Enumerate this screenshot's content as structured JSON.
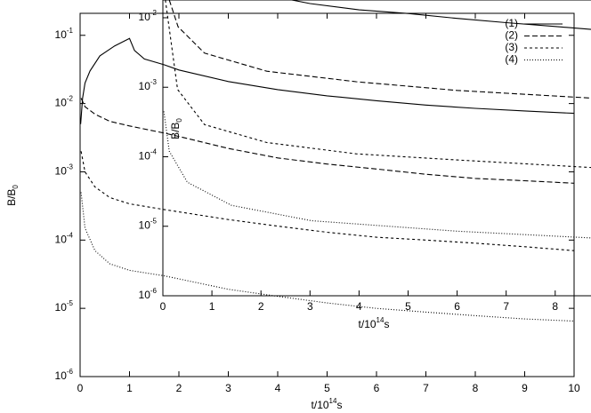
{
  "chart_data": [
    {
      "type": "line",
      "xlabel": "t/1014s",
      "ylabel": "B/B0",
      "log_y": true,
      "xlim": [
        0,
        10
      ],
      "ylim": [
        1e-06,
        0.21
      ],
      "xticks": [
        0,
        1,
        2,
        3,
        4,
        5,
        6,
        7,
        8,
        9,
        10
      ],
      "yticks": [
        {
          "value": 0.1,
          "label": "10-1"
        },
        {
          "value": 0.01,
          "label": "10-2"
        },
        {
          "value": 0.001,
          "label": "10-3"
        },
        {
          "value": 0.0001,
          "label": "10-4"
        },
        {
          "value": 1e-05,
          "label": "10-5"
        },
        {
          "value": 1e-06,
          "label": "10-6"
        }
      ],
      "series": [
        {
          "color": "#000000",
          "dash": "none",
          "x": [
            0.01,
            0.05,
            0.1,
            0.2,
            0.4,
            0.7,
            1,
            1.1,
            1.3,
            1.7,
            2,
            3,
            4,
            5,
            6,
            7,
            8,
            9,
            10
          ],
          "values": [
            0.005,
            0.012,
            0.02,
            0.03,
            0.05,
            0.07,
            0.09,
            0.06,
            0.045,
            0.037,
            0.031,
            0.021,
            0.016,
            0.013,
            0.011,
            0.0095,
            0.0085,
            0.0078,
            0.0072
          ]
        },
        {
          "color": "#000000",
          "dash": "6 3",
          "x": [
            0.02,
            0.1,
            0.3,
            0.6,
            1,
            1.7,
            2,
            3,
            4,
            5,
            6,
            7,
            8,
            9,
            10
          ],
          "values": [
            0.012,
            0.009,
            0.007,
            0.0055,
            0.0047,
            0.0037,
            0.0033,
            0.0022,
            0.0016,
            0.0013,
            0.0011,
            0.00092,
            0.0008,
            0.00074,
            0.00068
          ]
        },
        {
          "color": "#000000",
          "dash": "3 3",
          "x": [
            0.02,
            0.1,
            0.3,
            0.6,
            1,
            1.7,
            3,
            4,
            5,
            6,
            7,
            8,
            9,
            10
          ],
          "values": [
            0.002,
            0.001,
            0.0006,
            0.00042,
            0.00034,
            0.00028,
            0.0002,
            0.00016,
            0.00013,
            0.00011,
            0.0001,
            9e-05,
            8e-05,
            7e-05
          ]
        },
        {
          "color": "#000000",
          "dash": "1 2",
          "x": [
            0.02,
            0.1,
            0.3,
            0.6,
            1,
            1.7,
            3,
            4,
            5,
            6,
            7,
            8,
            9,
            10
          ],
          "values": [
            0.0005,
            0.00015,
            7e-05,
            4.5e-05,
            3.6e-05,
            3e-05,
            1.9e-05,
            1.5e-05,
            1.2e-05,
            1e-05,
            8.8e-06,
            7.8e-06,
            7e-06,
            6.5e-06
          ]
        }
      ]
    },
    {
      "type": "line",
      "xlabel": "t/1014s",
      "ylabel": "B/B0",
      "log_y": true,
      "legend": "top-right",
      "xlim": [
        0,
        8.73
      ],
      "ylim": [
        1e-06,
        0.018
      ],
      "xticks": [
        0,
        1,
        2,
        3,
        4,
        5,
        6,
        7,
        8
      ],
      "yticks": [
        {
          "value": 0.01,
          "label": "10-2"
        },
        {
          "value": 0.001,
          "label": "10-3"
        },
        {
          "value": 0.0001,
          "label": "10-4"
        },
        {
          "value": 1e-05,
          "label": "10-5"
        },
        {
          "value": 1e-06,
          "label": "10-6"
        }
      ],
      "series": [
        {
          "name": "(1)",
          "color": "#000000",
          "dash": "none",
          "x": [
            2.3,
            3,
            4,
            5,
            6,
            7,
            8,
            8.73
          ],
          "values": [
            0.02,
            0.016,
            0.013,
            0.0115,
            0.0098,
            0.0085,
            0.0075,
            0.0068
          ]
        },
        {
          "name": "(2)",
          "color": "#000000",
          "dash": "6 3",
          "x": [
            0.13,
            0.31,
            0.85,
            2.12,
            3.94,
            6,
            8.73
          ],
          "values": [
            0.018,
            0.0074,
            0.0031,
            0.0017,
            0.0012,
            0.0009,
            0.0007
          ]
        },
        {
          "name": "(3)",
          "color": "#000000",
          "dash": "3 3",
          "x": [
            0.05,
            0.3,
            0.85,
            2.12,
            3.94,
            6,
            8.73
          ],
          "values": [
            0.018,
            0.00093,
            0.00029,
            0.00016,
            0.00011,
            9e-05,
            7e-05
          ]
        },
        {
          "name": "(4)",
          "color": "#000000",
          "dash": "1 2",
          "x": [
            0.02,
            0.13,
            0.5,
            1.4,
            3.03,
            6,
            8.73
          ],
          "values": [
            0.00045,
            0.00012,
            4.3e-05,
            2e-05,
            1.2e-05,
            8.5e-06,
            6.8e-06
          ]
        }
      ]
    }
  ]
}
